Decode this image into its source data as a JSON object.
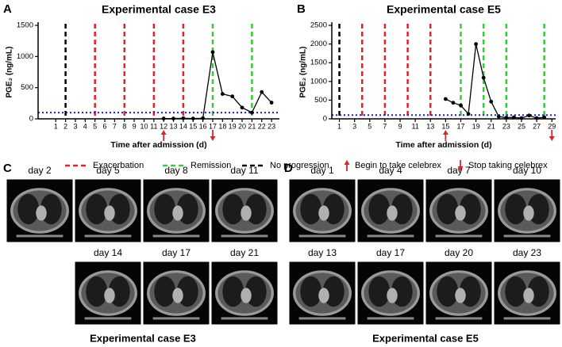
{
  "chart_data": [
    {
      "type": "line",
      "label": "A",
      "title": "Experimental case E3",
      "ylabel": "PGE₂ (ng/mL)",
      "xlabel": "Time after admission (d)",
      "x": [
        12,
        13,
        14,
        15,
        16,
        17,
        18,
        19,
        20,
        21,
        22,
        23
      ],
      "series": [
        {
          "color": "#000000",
          "values": [
            5,
            5,
            10,
            5,
            10,
            1070,
            400,
            360,
            180,
            100,
            430,
            260
          ]
        }
      ],
      "xlim": [
        -0.8,
        23.8
      ],
      "ylim": [
        0,
        1500
      ],
      "xticks": [
        1,
        2,
        3,
        4,
        5,
        6,
        7,
        8,
        9,
        10,
        11,
        12,
        13,
        14,
        15,
        16,
        17,
        18,
        19,
        20,
        21,
        22,
        23
      ],
      "yticks": [
        0,
        500,
        1000,
        1500
      ],
      "events": [
        {
          "color": "#000000",
          "x": [
            2
          ]
        },
        {
          "color": "#e8202a",
          "x": [
            5,
            8,
            11,
            14
          ]
        },
        {
          "color": "#3cc83c",
          "x": [
            17,
            21
          ]
        }
      ],
      "threshold": 100,
      "threshold_color": "#1a1ae0",
      "begin_x": 12,
      "stop_x": 17,
      "arrow_color": "#d9262b"
    },
    {
      "type": "line",
      "label": "B",
      "title": "Experimental case E5",
      "ylabel": "PGE₂ (ng/mL)",
      "xlabel": "Time after admission (d)",
      "x": [
        15,
        16,
        17,
        18,
        19,
        20,
        21,
        22,
        23,
        24,
        25,
        26,
        27,
        28
      ],
      "series": [
        {
          "color": "#000000",
          "values": [
            530,
            430,
            360,
            130,
            2000,
            1100,
            460,
            60,
            30,
            40,
            20,
            90,
            20,
            40
          ]
        }
      ],
      "xlim": [
        0,
        29.5
      ],
      "ylim": [
        0,
        2500
      ],
      "xticks": [
        1,
        3,
        5,
        7,
        9,
        11,
        13,
        15,
        17,
        19,
        21,
        23,
        25,
        27,
        29
      ],
      "yticks": [
        0,
        500,
        1000,
        1500,
        2000,
        2500
      ],
      "events": [
        {
          "color": "#000000",
          "x": [
            1
          ]
        },
        {
          "color": "#e8202a",
          "x": [
            4,
            7,
            10,
            13
          ]
        },
        {
          "color": "#3cc83c",
          "x": [
            17,
            20,
            23,
            28
          ]
        }
      ],
      "threshold": 100,
      "threshold_color": "#1a1ae0",
      "begin_x": 15,
      "stop_x": 29,
      "arrow_color": "#d9262b"
    }
  ],
  "legend": [
    {
      "label": "Exacerbation",
      "color": "#e8202a",
      "style": "dash"
    },
    {
      "label": "Remission",
      "color": "#3cc83c",
      "style": "dash"
    },
    {
      "label": "No progression",
      "color": "#000000",
      "style": "dash"
    },
    {
      "label": "Begin to take celebrex",
      "color": "#d9262b",
      "style": "up"
    },
    {
      "label": "Stop taking celebrex",
      "color": "#d9262b",
      "style": "down"
    }
  ],
  "panels": [
    {
      "label": "C",
      "rows": [
        [
          "day 2",
          "day 5",
          "day 8",
          "day 11"
        ],
        [
          "day 14",
          "day 17",
          "day 21"
        ]
      ],
      "caption": "Experimental case E3"
    },
    {
      "label": "D",
      "rows": [
        [
          "day 1",
          "day 4",
          "day 7",
          "day 10"
        ],
        [
          "day 13",
          "day 17",
          "day 20",
          "day 23"
        ]
      ],
      "caption": "Experimental case E5"
    }
  ]
}
